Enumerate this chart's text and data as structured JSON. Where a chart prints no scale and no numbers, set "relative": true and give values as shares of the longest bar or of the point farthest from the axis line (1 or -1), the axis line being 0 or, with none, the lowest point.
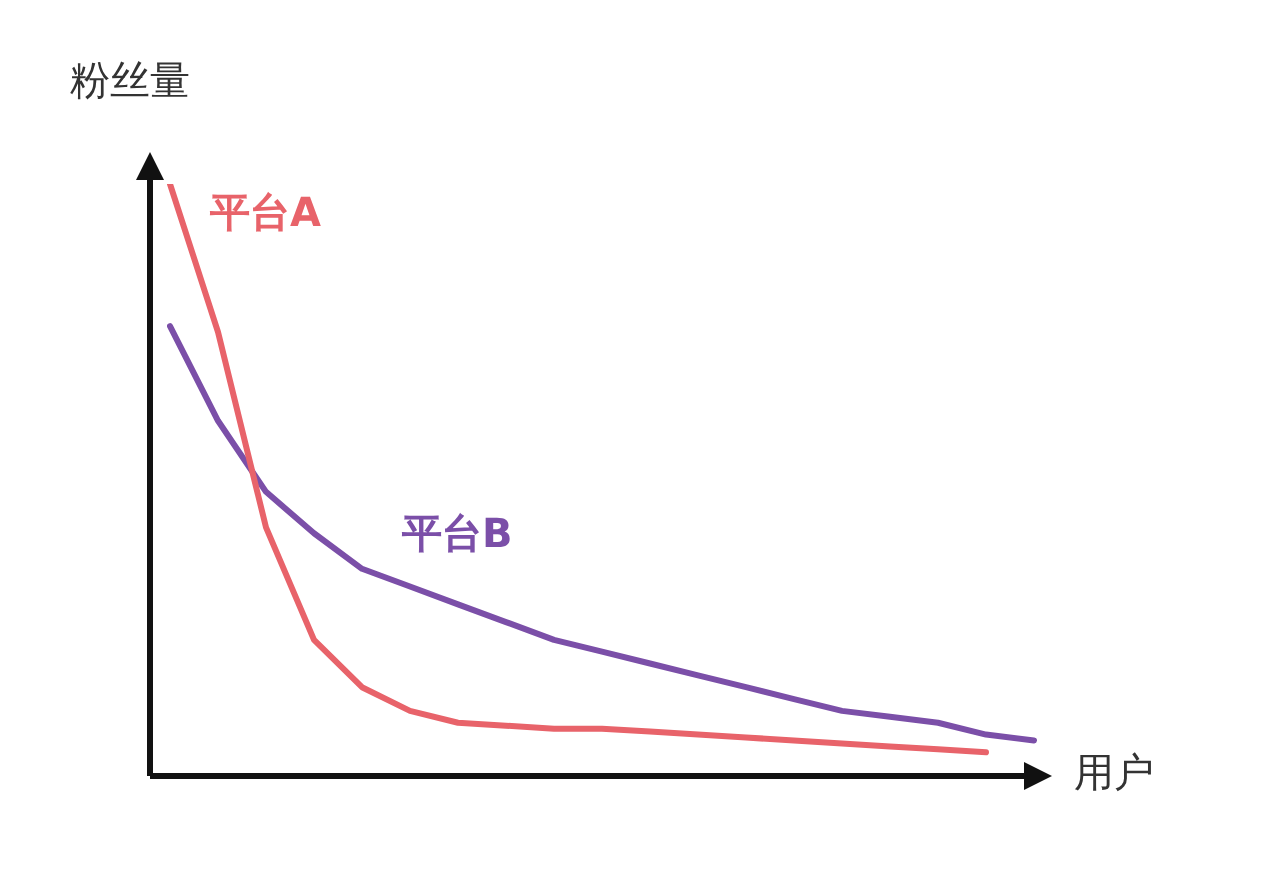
{
  "chart_data": {
    "type": "line",
    "relative": true,
    "xlabel": "用户",
    "ylabel": "粉丝量",
    "categories": [
      null,
      null,
      null,
      null,
      null,
      null,
      null,
      null,
      null,
      null,
      null,
      null,
      null,
      null,
      null,
      null,
      null,
      null,
      null
    ],
    "series": [
      {
        "name": "平台A",
        "color": "#e8636a",
        "values": [
          1.0,
          0.75,
          0.42,
          0.23,
          0.15,
          0.11,
          0.09,
          0.085,
          0.08,
          0.08,
          0.075,
          0.07,
          0.065,
          0.06,
          0.055,
          0.05,
          0.045,
          0.04,
          null
        ]
      },
      {
        "name": "平台B",
        "color": "#7b4fa8",
        "values": [
          0.76,
          0.6,
          0.48,
          0.41,
          0.35,
          0.32,
          0.29,
          0.26,
          0.23,
          0.21,
          0.19,
          0.17,
          0.15,
          0.13,
          0.11,
          0.1,
          0.09,
          0.07,
          0.06
        ]
      }
    ],
    "legend": false,
    "marker": "none"
  }
}
